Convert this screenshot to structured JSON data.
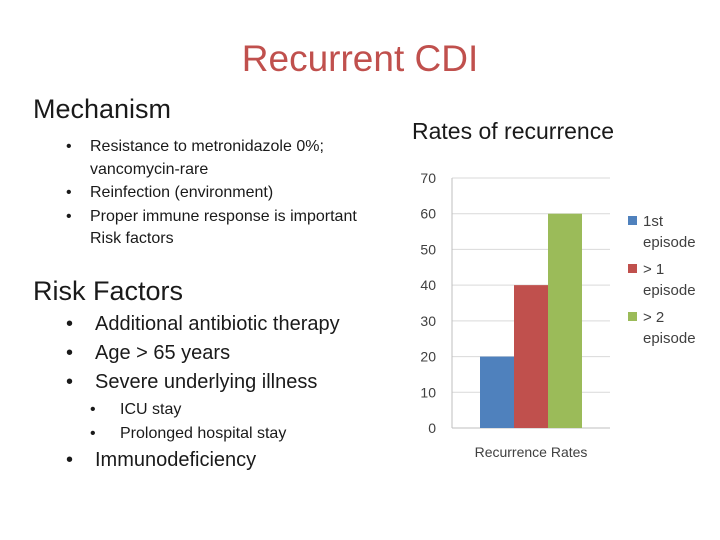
{
  "slide": {
    "title": "Recurrent CDI"
  },
  "mechanism": {
    "heading": "Mechanism",
    "items": [
      "Resistance to metronidazole 0%; vancomycin-rare",
      "Reinfection (environment)",
      "Proper immune response is important Risk factors"
    ]
  },
  "risk_factors": {
    "heading": "Risk Factors",
    "items": [
      "Additional antibiotic therapy",
      "Age > 65 years",
      "Severe underlying illness"
    ],
    "subitems": [
      "ICU stay",
      "Prolonged hospital stay"
    ],
    "last_item": "Immunodeficiency"
  },
  "bullet": "•",
  "chart_heading": "Rates of recurrence",
  "chart_data": {
    "type": "bar",
    "title": "",
    "categories": [
      "Recurrence Rates"
    ],
    "xlabel": "",
    "ylabel": "",
    "ylim": [
      0,
      70
    ],
    "yticks": [
      0,
      10,
      20,
      30,
      40,
      50,
      60,
      70
    ],
    "grid": true,
    "legend_position": "right",
    "series": [
      {
        "name": "1st episode",
        "values": [
          20
        ],
        "color": "#4f81bd",
        "legend_lines": [
          "1st",
          "episode"
        ]
      },
      {
        "name": ">1 episode",
        "values": [
          40
        ],
        "color": "#c0504d",
        "legend_lines": [
          "> 1",
          "episode"
        ]
      },
      {
        "name": ">2 episode",
        "values": [
          60
        ],
        "color": "#9bbb59",
        "legend_lines": [
          "> 2",
          "episode"
        ]
      }
    ]
  }
}
